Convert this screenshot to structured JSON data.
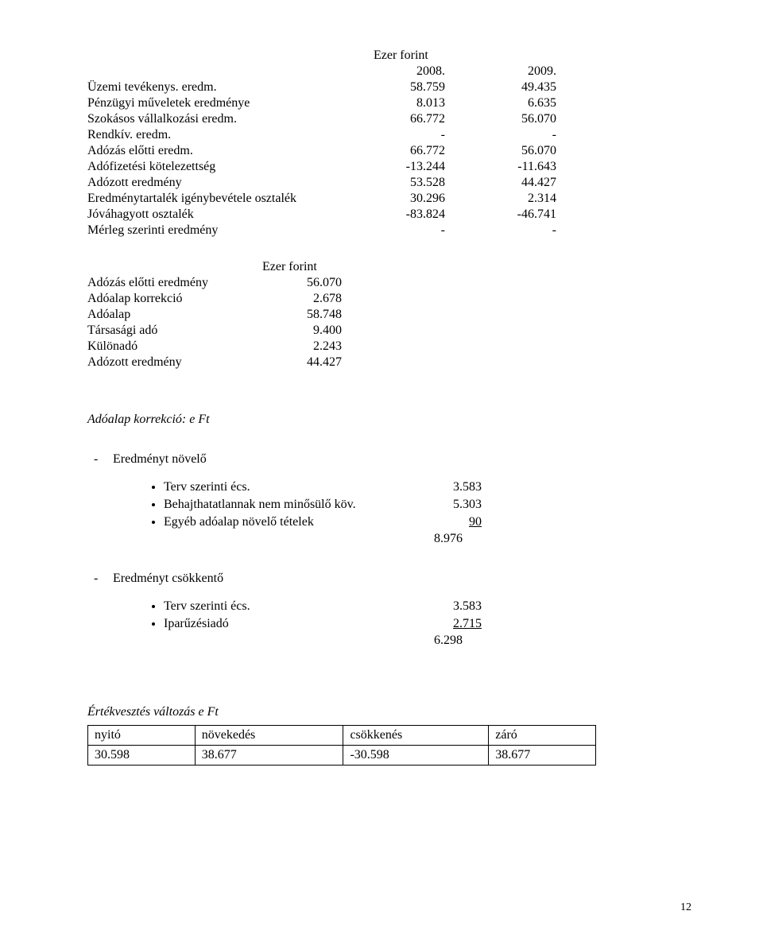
{
  "t1": {
    "unit": "Ezer forint",
    "col_a": "2008.",
    "col_b": "2009.",
    "rows": [
      {
        "label": "Üzemi tevékenys. eredm.",
        "a": "58.759",
        "b": "49.435"
      },
      {
        "label": "Pénzügyi műveletek eredménye",
        "a": "8.013",
        "b": "6.635"
      },
      {
        "label": "Szokásos vállalkozási eredm.",
        "a": "66.772",
        "b": "56.070"
      },
      {
        "label": "Rendkív. eredm.",
        "a": "-",
        "b": "-"
      },
      {
        "label": "Adózás előtti eredm.",
        "a": "66.772",
        "b": "56.070"
      },
      {
        "label": "Adófizetési kötelezettség",
        "a": "-13.244",
        "b": "-11.643"
      },
      {
        "label": "Adózott eredmény",
        "a": "53.528",
        "b": "44.427"
      },
      {
        "label": "Eredménytartalék igénybevétele osztalék",
        "a": "30.296",
        "b": "2.314"
      },
      {
        "label": "Jóváhagyott osztalék",
        "a": "-83.824",
        "b": "-46.741"
      },
      {
        "label": "Mérleg szerinti eredmény",
        "a": "-",
        "b": "-"
      }
    ]
  },
  "t2": {
    "unit": "Ezer forint",
    "rows": [
      {
        "label": "Adózás előtti eredmény",
        "v": "56.070"
      },
      {
        "label": "Adóalap korrekció",
        "v": "2.678"
      },
      {
        "label": "Adóalap",
        "v": "58.748"
      },
      {
        "label": "Társasági adó",
        "v": "9.400"
      },
      {
        "label": "Különadó",
        "v": "2.243"
      },
      {
        "label": "Adózott eredmény",
        "v": "44.427"
      }
    ]
  },
  "section_korr": "Adóalap korrekció: e Ft",
  "inc": {
    "title": "Eredményt növelő",
    "items": [
      {
        "text": "Terv szerinti écs.",
        "val": "3.583"
      },
      {
        "text": "Behajthatatlannak nem minősülő köv.",
        "val": "5.303"
      },
      {
        "text": "Egyéb adóalap növelő tételek",
        "val": "90",
        "underline": true
      }
    ],
    "total": "8.976"
  },
  "dec": {
    "title": "Eredményt csökkentő",
    "items": [
      {
        "text": "Terv szerinti écs.",
        "val": "3.583"
      },
      {
        "text": "Iparűzésiadó",
        "val": "2.715",
        "underline": true
      }
    ],
    "total": "6.298"
  },
  "section_ev": "Értékvesztés változás   e Ft",
  "ev_table": {
    "headers": [
      "nyitó",
      "növekedés",
      "csökkenés",
      "záró"
    ],
    "row": [
      "30.598",
      "38.677",
      "-30.598",
      "38.677"
    ]
  },
  "page_number": "12"
}
